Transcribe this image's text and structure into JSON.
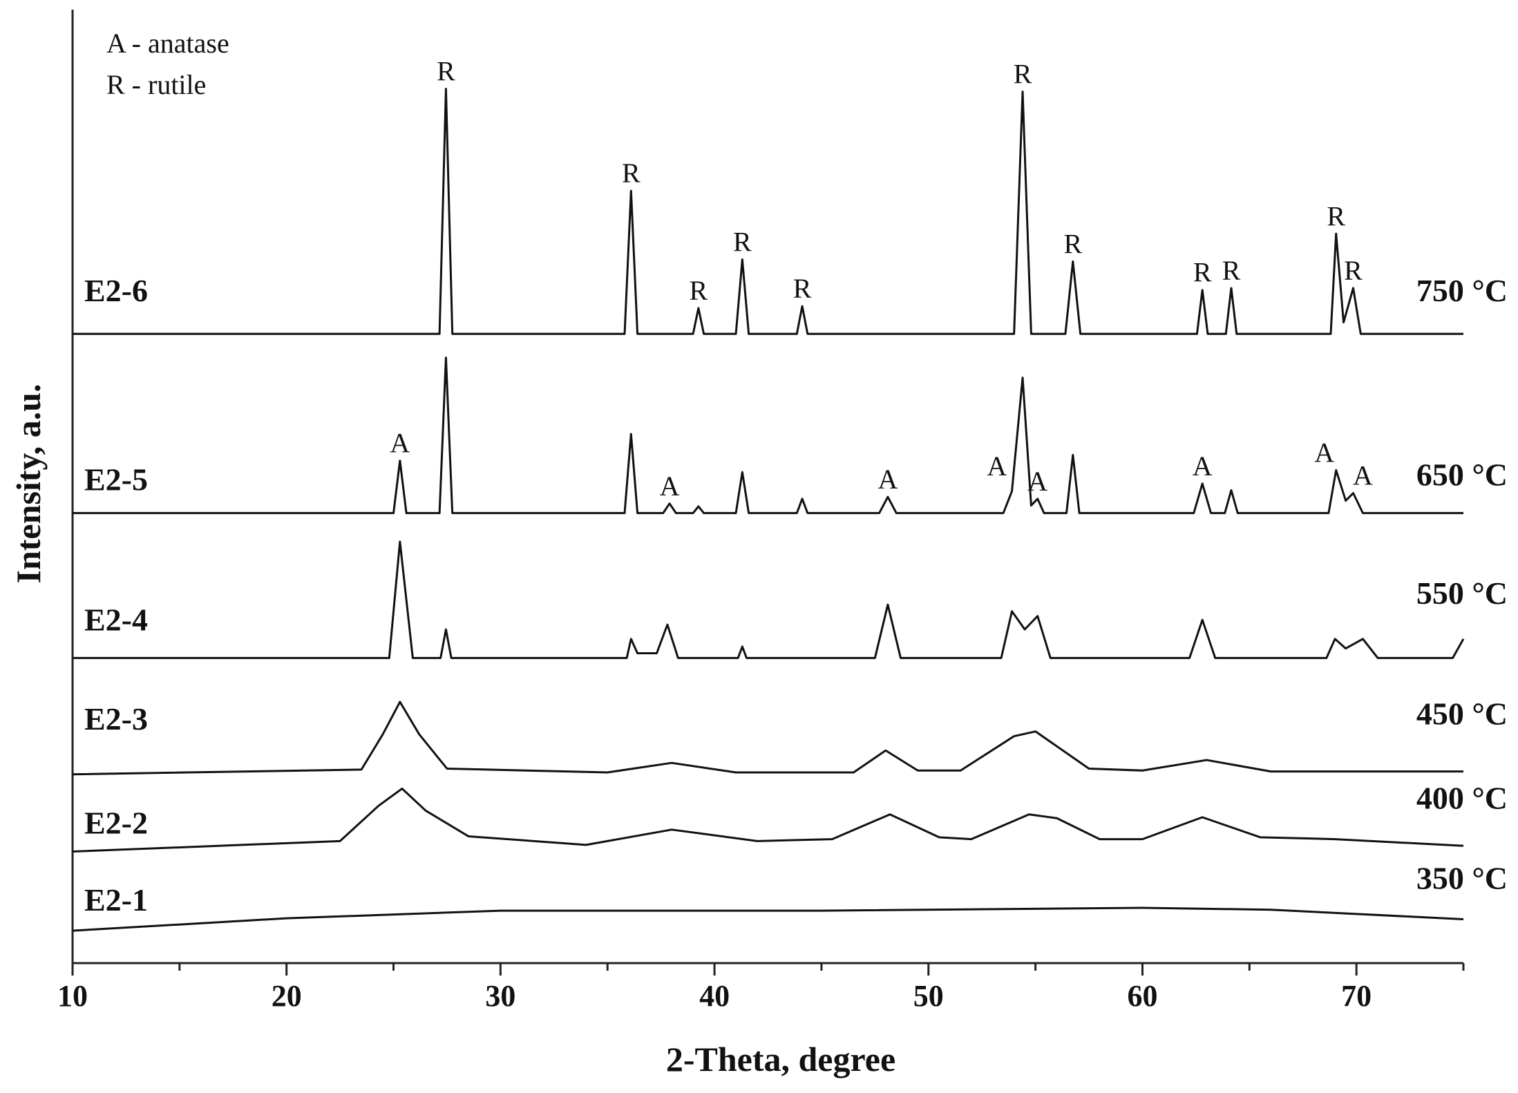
{
  "chart_data": {
    "type": "line",
    "x_label": "2-Theta, degree",
    "y_label": "Intensity, a.u.",
    "legend_text": [
      "A - anatase",
      "R - rutile"
    ],
    "xlim": [
      10,
      75
    ],
    "xticks": [
      10,
      20,
      30,
      40,
      50,
      60,
      70
    ],
    "xminor_ticks": [
      15,
      25,
      35,
      45,
      55,
      65,
      75
    ],
    "ylim": [
      0,
      100
    ],
    "series": [
      {
        "name": "E2-6",
        "label": "750 °C",
        "color": "#111111",
        "x": [
          10,
          27.15,
          27.45,
          27.75,
          35.8,
          36.1,
          36.4,
          39.0,
          39.25,
          39.5,
          41.0,
          41.3,
          41.6,
          43.85,
          44.1,
          44.35,
          54.0,
          54.4,
          54.8,
          56.4,
          56.75,
          57.1,
          62.55,
          62.8,
          63.05,
          63.9,
          64.15,
          64.4,
          68.8,
          69.05,
          69.4,
          69.85,
          70.2,
          75
        ],
        "values": [
          66,
          66,
          91.7,
          66,
          66,
          81,
          66,
          66,
          68.7,
          66,
          66,
          73.8,
          66,
          66,
          68.9,
          66,
          66,
          91.4,
          66,
          66,
          73.6,
          66,
          66,
          70.6,
          66,
          66,
          70.8,
          66,
          66,
          76.5,
          67.2,
          70.8,
          66,
          66
        ]
      },
      {
        "name": "E2-5",
        "label": "650 °C",
        "color": "#111111",
        "x": [
          10,
          25.0,
          25.3,
          25.6,
          27.15,
          27.45,
          27.75,
          35.8,
          36.1,
          36.4,
          37.6,
          37.9,
          38.2,
          39.0,
          39.25,
          39.5,
          41.0,
          41.3,
          41.6,
          43.85,
          44.1,
          44.35,
          47.7,
          48.1,
          48.5,
          53.5,
          53.9,
          54.4,
          54.8,
          55.1,
          55.4,
          56.45,
          56.75,
          57.05,
          62.4,
          62.8,
          63.2,
          63.85,
          64.15,
          64.45,
          68.7,
          69.05,
          69.5,
          69.85,
          70.3,
          75
        ],
        "values": [
          47.2,
          47.2,
          52.7,
          47.2,
          47.2,
          63.5,
          47.2,
          47.2,
          55.5,
          47.2,
          47.2,
          48.2,
          47.2,
          47.2,
          47.9,
          47.2,
          47.2,
          51.5,
          47.2,
          47.2,
          48.7,
          47.2,
          47.2,
          48.9,
          47.2,
          47.2,
          49.5,
          61.4,
          48.0,
          48.7,
          47.2,
          47.2,
          53.3,
          47.2,
          47.2,
          50.3,
          47.2,
          47.2,
          49.6,
          47.2,
          47.2,
          51.7,
          48.5,
          49.3,
          47.2,
          47.2
        ]
      },
      {
        "name": "E2-4",
        "label": "550 °C",
        "color": "#111111",
        "x": [
          10,
          24.8,
          25.3,
          25.9,
          27.2,
          27.45,
          27.7,
          35.9,
          36.1,
          36.4,
          37.3,
          37.8,
          38.3,
          41.1,
          41.3,
          41.5,
          47.5,
          48.1,
          48.7,
          53.4,
          53.9,
          54.5,
          55.1,
          55.7,
          62.2,
          62.8,
          63.4,
          68.6,
          69.0,
          69.5,
          70.3,
          71.0,
          74.5,
          75
        ],
        "values": [
          32,
          32,
          44.2,
          32,
          32,
          35,
          32,
          32,
          34,
          32.5,
          32.5,
          35.5,
          32,
          32,
          33.2,
          32,
          32,
          37.6,
          32,
          32,
          36.9,
          35,
          36.4,
          32,
          32,
          36,
          32,
          32,
          34,
          33,
          34,
          32,
          32,
          34
        ]
      },
      {
        "name": "E2-3",
        "label": "450 °C",
        "color": "#111111",
        "x": [
          10,
          23.5,
          24.5,
          25.3,
          26.2,
          27.5,
          35,
          38,
          41,
          46.5,
          48,
          49.5,
          51.5,
          54,
          55,
          57.5,
          60,
          63,
          66,
          75
        ],
        "values": [
          19.8,
          20.3,
          24,
          27.4,
          24,
          20.4,
          20,
          21,
          20,
          20,
          22.3,
          20.2,
          20.2,
          23.8,
          24.3,
          20.4,
          20.2,
          21.3,
          20.1,
          20.1
        ]
      },
      {
        "name": "E2-2",
        "label": "400 °C",
        "color": "#111111",
        "x": [
          10,
          22.5,
          24.3,
          25.4,
          26.5,
          28.5,
          34,
          38,
          42,
          45.5,
          48.2,
          50.5,
          52,
          54.7,
          56,
          58,
          60,
          62.8,
          65.5,
          69,
          75
        ],
        "values": [
          11.7,
          12.8,
          16.5,
          18.3,
          16,
          13.3,
          12.4,
          14,
          12.8,
          13,
          15.6,
          13.2,
          13,
          15.6,
          15.2,
          13,
          13,
          15.3,
          13.2,
          13,
          12.3
        ]
      },
      {
        "name": "E2-1",
        "label": "350 °C",
        "color": "#111111",
        "x": [
          10,
          20,
          30,
          45,
          60,
          66,
          75
        ],
        "values": [
          3.4,
          4.7,
          5.5,
          5.5,
          5.8,
          5.6,
          4.6
        ]
      }
    ],
    "annotations": [
      {
        "text": "R",
        "x": 27.45,
        "y": 91.7
      },
      {
        "text": "R",
        "x": 36.1,
        "y": 81
      },
      {
        "text": "R",
        "x": 39.25,
        "y": 68.7
      },
      {
        "text": "R",
        "x": 41.3,
        "y": 73.8
      },
      {
        "text": "R",
        "x": 44.1,
        "y": 68.9
      },
      {
        "text": "R",
        "x": 54.4,
        "y": 91.4
      },
      {
        "text": "R",
        "x": 56.75,
        "y": 73.6
      },
      {
        "text": "R",
        "x": 62.8,
        "y": 70.6
      },
      {
        "text": "R",
        "x": 64.15,
        "y": 70.8
      },
      {
        "text": "R",
        "x": 69.05,
        "y": 76.5
      },
      {
        "text": "R",
        "x": 69.85,
        "y": 70.8
      },
      {
        "text": "A",
        "x": 25.3,
        "y": 52.7
      },
      {
        "text": "A",
        "x": 37.9,
        "y": 48.2
      },
      {
        "text": "A",
        "x": 48.1,
        "y": 48.9
      },
      {
        "text": "A",
        "x": 53.2,
        "y": 50.3
      },
      {
        "text": "A",
        "x": 55.1,
        "y": 48.7
      },
      {
        "text": "A",
        "x": 62.8,
        "y": 50.3
      },
      {
        "text": "A",
        "x": 68.5,
        "y": 51.7
      },
      {
        "text": "A",
        "x": 70.3,
        "y": 49.3
      }
    ]
  }
}
